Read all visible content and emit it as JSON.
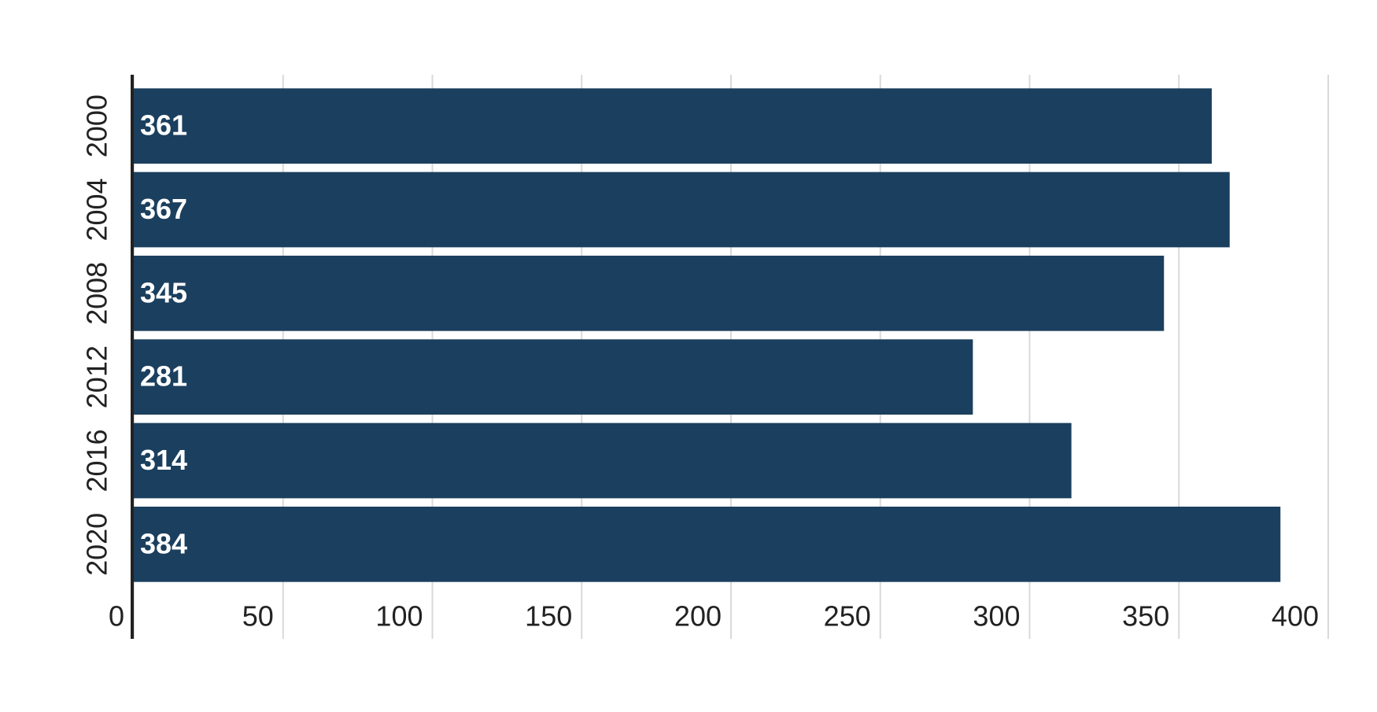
{
  "chart_data": {
    "type": "bar",
    "orientation": "horizontal",
    "categories": [
      "2000",
      "2004",
      "2008",
      "2012",
      "2016",
      "2020"
    ],
    "values": [
      361,
      367,
      345,
      281,
      314,
      384
    ],
    "color": "#1b3f5e",
    "xlim": [
      0,
      400
    ],
    "xticks": [
      0,
      50,
      100,
      150,
      200,
      250,
      300,
      350,
      400
    ],
    "grid": true
  }
}
